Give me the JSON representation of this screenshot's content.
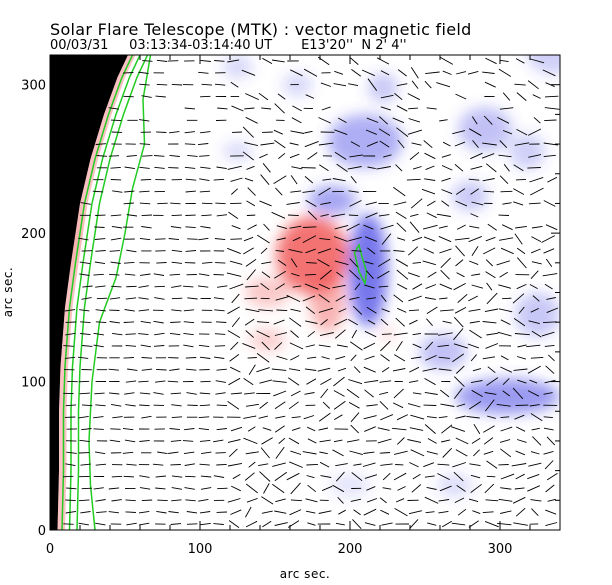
{
  "header": {
    "title": "Solar Flare Telescope (MTK) : vector magnetic field",
    "date": "00/03/31",
    "time_range": "03:13:34-03:14:40 UT",
    "position": "E13'20''  N 2' 4''"
  },
  "chart_data": {
    "type": "heatmap",
    "title": "Solar Flare Telescope (MTK) : vector magnetic field",
    "xlabel": "arc sec.",
    "ylabel": "arc sec.",
    "xlim": [
      0,
      340
    ],
    "ylim": [
      0,
      320
    ],
    "xticks": [
      0,
      100,
      200,
      300
    ],
    "yticks": [
      0,
      100,
      200,
      300
    ],
    "x_minor_step": 20,
    "y_minor_step": 20,
    "colors": {
      "positive": "#f05050",
      "negative": "#4a4ae6",
      "contour": "#22cc22",
      "offdisk": "#000000",
      "vector": "#000000"
    },
    "positive_regions": [
      {
        "cx": 175,
        "cy": 185,
        "rx": 24,
        "ry": 26,
        "strength": 1.0
      },
      {
        "cx": 185,
        "cy": 155,
        "rx": 12,
        "ry": 22,
        "strength": 0.55
      },
      {
        "cx": 145,
        "cy": 160,
        "rx": 15,
        "ry": 10,
        "strength": 0.4
      },
      {
        "cx": 145,
        "cy": 128,
        "rx": 12,
        "ry": 8,
        "strength": 0.35
      },
      {
        "cx": 225,
        "cy": 132,
        "rx": 4,
        "ry": 4,
        "strength": 0.4
      },
      {
        "cx": 12,
        "cy": 200,
        "rx": 6,
        "ry": 25,
        "strength": 0.3
      }
    ],
    "negative_regions": [
      {
        "cx": 212,
        "cy": 175,
        "rx": 13,
        "ry": 38,
        "strength": 1.0
      },
      {
        "cx": 188,
        "cy": 222,
        "rx": 16,
        "ry": 10,
        "strength": 0.65
      },
      {
        "cx": 210,
        "cy": 262,
        "rx": 25,
        "ry": 18,
        "strength": 0.6
      },
      {
        "cx": 222,
        "cy": 298,
        "rx": 10,
        "ry": 10,
        "strength": 0.4
      },
      {
        "cx": 290,
        "cy": 270,
        "rx": 18,
        "ry": 15,
        "strength": 0.45
      },
      {
        "cx": 280,
        "cy": 225,
        "rx": 12,
        "ry": 10,
        "strength": 0.4
      },
      {
        "cx": 318,
        "cy": 255,
        "rx": 12,
        "ry": 12,
        "strength": 0.35
      },
      {
        "cx": 305,
        "cy": 90,
        "rx": 35,
        "ry": 12,
        "strength": 0.75
      },
      {
        "cx": 262,
        "cy": 120,
        "rx": 16,
        "ry": 12,
        "strength": 0.45
      },
      {
        "cx": 325,
        "cy": 145,
        "rx": 15,
        "ry": 15,
        "strength": 0.4
      },
      {
        "cx": 125,
        "cy": 255,
        "rx": 10,
        "ry": 6,
        "strength": 0.3
      },
      {
        "cx": 165,
        "cy": 300,
        "rx": 10,
        "ry": 8,
        "strength": 0.3
      },
      {
        "cx": 335,
        "cy": 325,
        "rx": 18,
        "ry": 18,
        "strength": 0.35
      },
      {
        "cx": 125,
        "cy": 312,
        "rx": 10,
        "ry": 8,
        "strength": 0.3
      },
      {
        "cx": 270,
        "cy": 30,
        "rx": 12,
        "ry": 8,
        "strength": 0.25
      },
      {
        "cx": 200,
        "cy": 30,
        "rx": 14,
        "ry": 8,
        "strength": 0.2
      }
    ],
    "limb": {
      "points": [
        [
          5,
          0
        ],
        [
          6,
          40
        ],
        [
          6,
          80
        ],
        [
          7,
          110
        ],
        [
          10,
          150
        ],
        [
          14,
          180
        ],
        [
          20,
          220
        ],
        [
          27,
          250
        ],
        [
          36,
          280
        ],
        [
          45,
          305
        ],
        [
          52,
          320
        ]
      ]
    },
    "contour_offsets": [
      3,
      8,
      13
    ],
    "contour_far": [
      [
        30,
        0
      ],
      [
        27,
        30
      ],
      [
        26,
        60
      ],
      [
        28,
        100
      ],
      [
        33,
        140
      ],
      [
        44,
        170
      ],
      [
        50,
        200
      ],
      [
        55,
        230
      ],
      [
        63,
        260
      ],
      [
        62,
        290
      ],
      [
        67,
        320
      ]
    ],
    "contour_small": [
      [
        203,
        187
      ],
      [
        206,
        192
      ],
      [
        208,
        184
      ],
      [
        211,
        174
      ],
      [
        210,
        166
      ],
      [
        206,
        174
      ],
      [
        203,
        187
      ]
    ],
    "vectors": {
      "x_step": 10,
      "y_step": 8
    }
  }
}
